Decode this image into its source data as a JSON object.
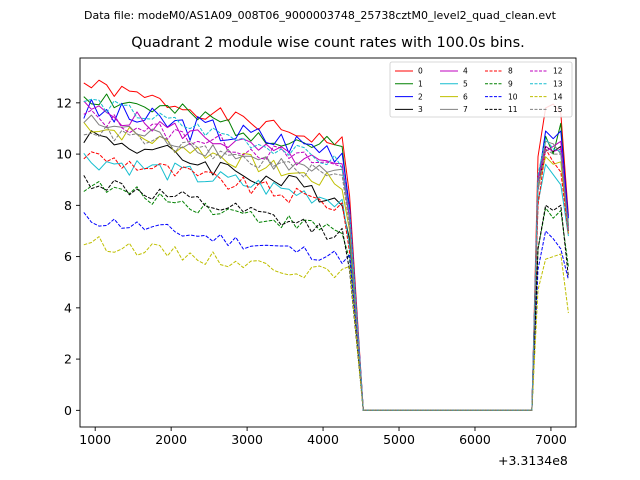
{
  "figure": {
    "suptitle": "Data file: modeM0/AS1A09_008T06_9000003748_25738cztM0_level2_quad_clean.evt"
  },
  "chart_data": {
    "type": "line",
    "title": "Quadrant 2 module wise count rates with 100.0s bins.",
    "xlabel": "",
    "ylabel": "",
    "x_offset_label": "+3.3134e8",
    "xlim": [
      800,
      7330
    ],
    "ylim": [
      -0.65,
      13.75
    ],
    "xticks": [
      1000,
      2000,
      3000,
      4000,
      5000,
      6000,
      7000
    ],
    "xtick_labels": [
      "1000",
      "2000",
      "3000",
      "4000",
      "5000",
      "6000",
      "7000"
    ],
    "yticks": [
      0,
      2,
      4,
      6,
      8,
      10,
      12
    ],
    "ytick_labels": [
      "0",
      "2",
      "4",
      "6",
      "8",
      "10",
      "12"
    ],
    "grid": false,
    "legend_position": "top-right",
    "legend_columns": 4,
    "gap": {
      "x_data_end": 4400,
      "x_zero_start": 4530,
      "x_zero_end": 6750,
      "x_data_resume": 6830
    },
    "segment1": {
      "x_start": 850,
      "x_end": 4400,
      "step": 100
    },
    "segment2": {
      "x": [
        6830,
        6930,
        7030,
        7130,
        7230
      ]
    },
    "series": [
      {
        "name": "0",
        "color": "#ff0000",
        "dash": "solid",
        "base": 12.75,
        "decay": 2.45,
        "amp": 0.3,
        "seed": 1,
        "tail": [
          9.9,
          11.8,
          11.95,
          11.6,
          7.6
        ]
      },
      {
        "name": "1",
        "color": "#008000",
        "dash": "solid",
        "base": 12.35,
        "decay": 2.3,
        "amp": 0.45,
        "seed": 2,
        "tail": [
          9.0,
          10.7,
          10.0,
          11.2,
          7.2
        ]
      },
      {
        "name": "2",
        "color": "#0000ff",
        "dash": "solid",
        "base": 11.7,
        "decay": 1.6,
        "amp": 0.55,
        "seed": 3,
        "tail": [
          8.9,
          10.9,
          10.6,
          10.9,
          7.5
        ]
      },
      {
        "name": "3",
        "color": "#000000",
        "dash": "solid",
        "base": 10.8,
        "decay": 2.6,
        "amp": 0.4,
        "seed": 4,
        "tail": [
          8.6,
          10.3,
          10.1,
          10.3,
          7.0
        ]
      },
      {
        "name": "4",
        "color": "#bf00bf",
        "dash": "solid",
        "base": 11.8,
        "decay": 2.5,
        "amp": 0.35,
        "seed": 5,
        "tail": [
          9.1,
          10.1,
          10.3,
          10.5,
          7.1
        ]
      },
      {
        "name": "5",
        "color": "#17becf",
        "dash": "solid",
        "base": 9.85,
        "decay": 1.7,
        "amp": 0.4,
        "seed": 6,
        "tail": [
          8.1,
          9.6,
          9.2,
          8.8,
          6.8
        ]
      },
      {
        "name": "6",
        "color": "#bfbf00",
        "dash": "solid",
        "base": 11.2,
        "decay": 2.5,
        "amp": 0.35,
        "seed": 7,
        "tail": [
          8.7,
          9.9,
          9.6,
          9.7,
          6.9
        ]
      },
      {
        "name": "7",
        "color": "#808080",
        "dash": "solid",
        "base": 11.3,
        "decay": 2.3,
        "amp": 0.35,
        "seed": 8,
        "tail": [
          8.9,
          10.5,
          10.4,
          10.0,
          7.2
        ]
      },
      {
        "name": "8",
        "color": "#ff0000",
        "dash": "dashed",
        "base": 10.0,
        "decay": 2.1,
        "amp": 0.35,
        "seed": 9,
        "tail": [
          8.0,
          10.2,
          9.7,
          9.3,
          6.9
        ]
      },
      {
        "name": "9",
        "color": "#008000",
        "dash": "dashed",
        "base": 8.8,
        "decay": 1.9,
        "amp": 0.3,
        "seed": 10,
        "tail": [
          6.3,
          7.9,
          7.5,
          7.8,
          5.6
        ]
      },
      {
        "name": "10",
        "color": "#0000ff",
        "dash": "dashed",
        "base": 7.5,
        "decay": 1.6,
        "amp": 0.28,
        "seed": 11,
        "tail": [
          5.5,
          7.0,
          6.7,
          6.3,
          5.1
        ]
      },
      {
        "name": "11",
        "color": "#000000",
        "dash": "dashed",
        "base": 9.0,
        "decay": 2.2,
        "amp": 0.35,
        "seed": 12,
        "tail": [
          6.3,
          8.0,
          7.8,
          8.0,
          5.2
        ]
      },
      {
        "name": "12",
        "color": "#bf00bf",
        "dash": "dashed",
        "base": 11.5,
        "decay": 2.1,
        "amp": 0.35,
        "seed": 13,
        "tail": [
          8.9,
          10.3,
          10.1,
          10.2,
          7.0
        ]
      },
      {
        "name": "13",
        "color": "#17becf",
        "dash": "dashed",
        "base": 12.1,
        "decay": 2.6,
        "amp": 0.3,
        "seed": 14,
        "tail": [
          9.2,
          10.6,
          10.2,
          10.1,
          7.1
        ]
      },
      {
        "name": "14",
        "color": "#bfbf00",
        "dash": "dashed",
        "base": 6.6,
        "decay": 1.4,
        "amp": 0.28,
        "seed": 15,
        "tail": [
          4.7,
          5.9,
          6.0,
          6.1,
          3.8
        ]
      },
      {
        "name": "15",
        "color": "#808080",
        "dash": "dashed",
        "base": 11.0,
        "decay": 2.0,
        "amp": 0.3,
        "seed": 16,
        "tail": [
          8.6,
          10.2,
          10.0,
          10.0,
          7.0
        ]
      }
    ]
  }
}
